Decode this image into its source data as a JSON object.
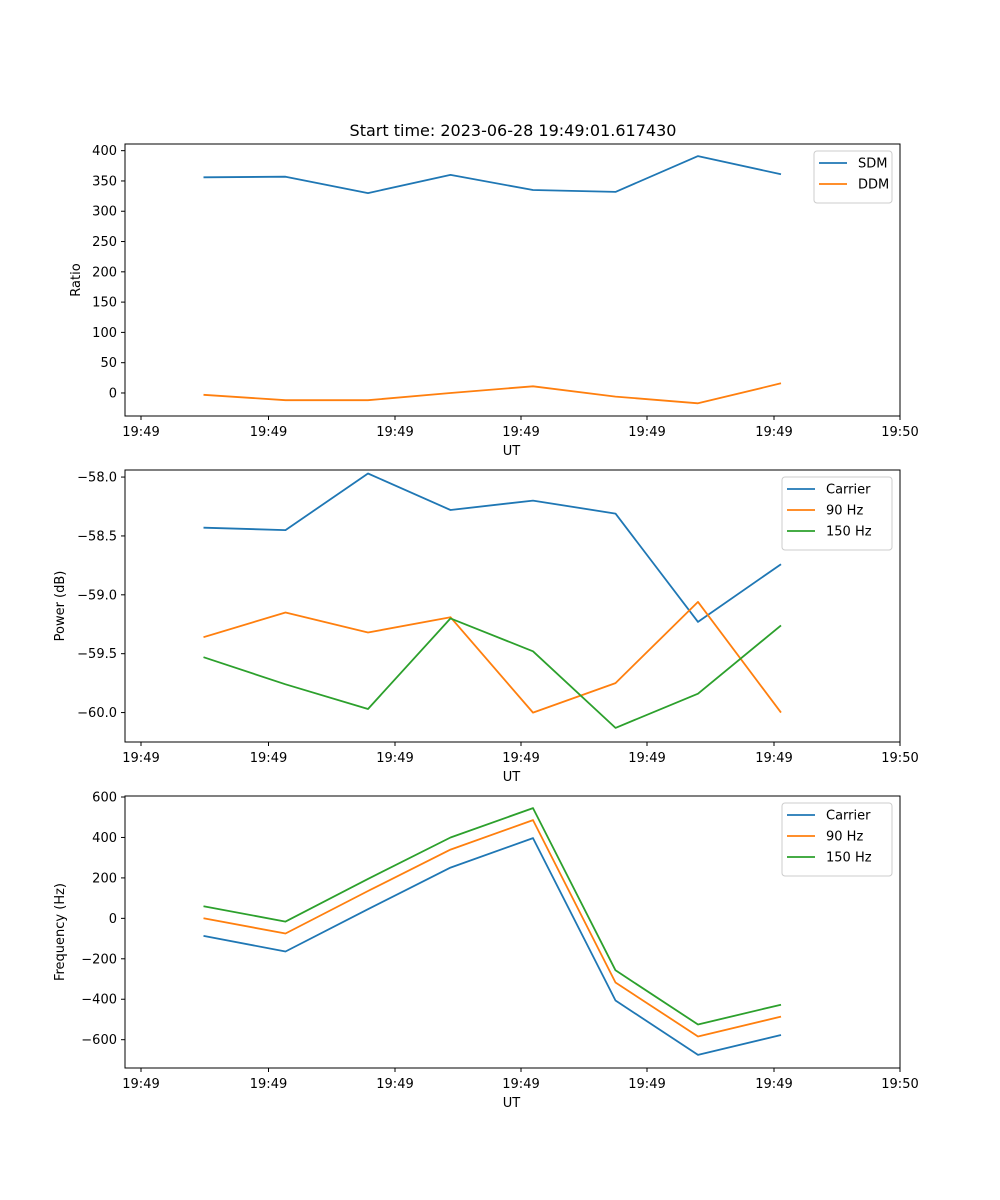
{
  "figure": {
    "title": "Start time: 2023-06-28 19:49:01.617430"
  },
  "chart_data": [
    {
      "type": "line",
      "xlabel": "UT",
      "ylabel": "Ratio",
      "x_ticks": [
        "19:49",
        "19:49",
        "19:49",
        "19:49",
        "19:49",
        "19:49",
        "19:50"
      ],
      "ylim": [
        -38,
        411
      ],
      "y_ticks": [
        0,
        50,
        100,
        150,
        200,
        250,
        300,
        350,
        400
      ],
      "legend_position": "top-right",
      "x": [
        1,
        2,
        3,
        4,
        5,
        6,
        7,
        8
      ],
      "series": [
        {
          "name": "SDM",
          "color": "#1f77b4",
          "values": [
            356,
            357,
            330,
            360,
            335,
            332,
            391,
            361
          ]
        },
        {
          "name": "DDM",
          "color": "#ff7f0e",
          "values": [
            -3,
            -12,
            -12,
            0,
            11,
            -6,
            -17,
            16
          ]
        }
      ]
    },
    {
      "type": "line",
      "xlabel": "UT",
      "ylabel": "Power (dB)",
      "x_ticks": [
        "19:49",
        "19:49",
        "19:49",
        "19:49",
        "19:49",
        "19:49",
        "19:50"
      ],
      "ylim": [
        -60.25,
        -57.94
      ],
      "y_ticks": [
        "-58.0",
        "-58.5",
        "-59.0",
        "-59.5",
        "-60.0"
      ],
      "y_tick_values": [
        -58.0,
        -58.5,
        -59.0,
        -59.5,
        -60.0
      ],
      "legend_position": "top-right",
      "x": [
        1,
        2,
        3,
        4,
        5,
        6,
        7,
        8
      ],
      "series": [
        {
          "name": "Carrier",
          "color": "#1f77b4",
          "values": [
            -58.43,
            -58.45,
            -57.97,
            -58.28,
            -58.2,
            -58.31,
            -59.23,
            -58.74
          ]
        },
        {
          "name": "90 Hz",
          "color": "#ff7f0e",
          "values": [
            -59.36,
            -59.15,
            -59.32,
            -59.19,
            -60.0,
            -59.75,
            -59.06,
            -60.0
          ]
        },
        {
          "name": "150 Hz",
          "color": "#2ca02c",
          "values": [
            -59.53,
            -59.76,
            -59.97,
            -59.2,
            -59.48,
            -60.13,
            -59.84,
            -59.26
          ]
        }
      ]
    },
    {
      "type": "line",
      "xlabel": "UT",
      "ylabel": "Frequency (Hz)",
      "x_ticks": [
        "19:49",
        "19:49",
        "19:49",
        "19:49",
        "19:49",
        "19:49",
        "19:50"
      ],
      "ylim": [
        -740,
        605
      ],
      "y_ticks": [
        600,
        400,
        200,
        0,
        -200,
        -400,
        -600
      ],
      "legend_position": "top-right",
      "x": [
        1,
        2,
        3,
        4,
        5,
        6,
        7,
        8
      ],
      "series": [
        {
          "name": "Carrier",
          "color": "#1f77b4",
          "values": [
            -87,
            -164,
            45,
            251,
            397,
            -406,
            -675,
            -577
          ]
        },
        {
          "name": "90 Hz",
          "color": "#ff7f0e",
          "values": [
            0,
            -75,
            135,
            340,
            486,
            -317,
            -584,
            -486
          ]
        },
        {
          "name": "150 Hz",
          "color": "#2ca02c",
          "values": [
            60,
            -16,
            195,
            400,
            545,
            -257,
            -525,
            -427
          ]
        }
      ]
    }
  ]
}
